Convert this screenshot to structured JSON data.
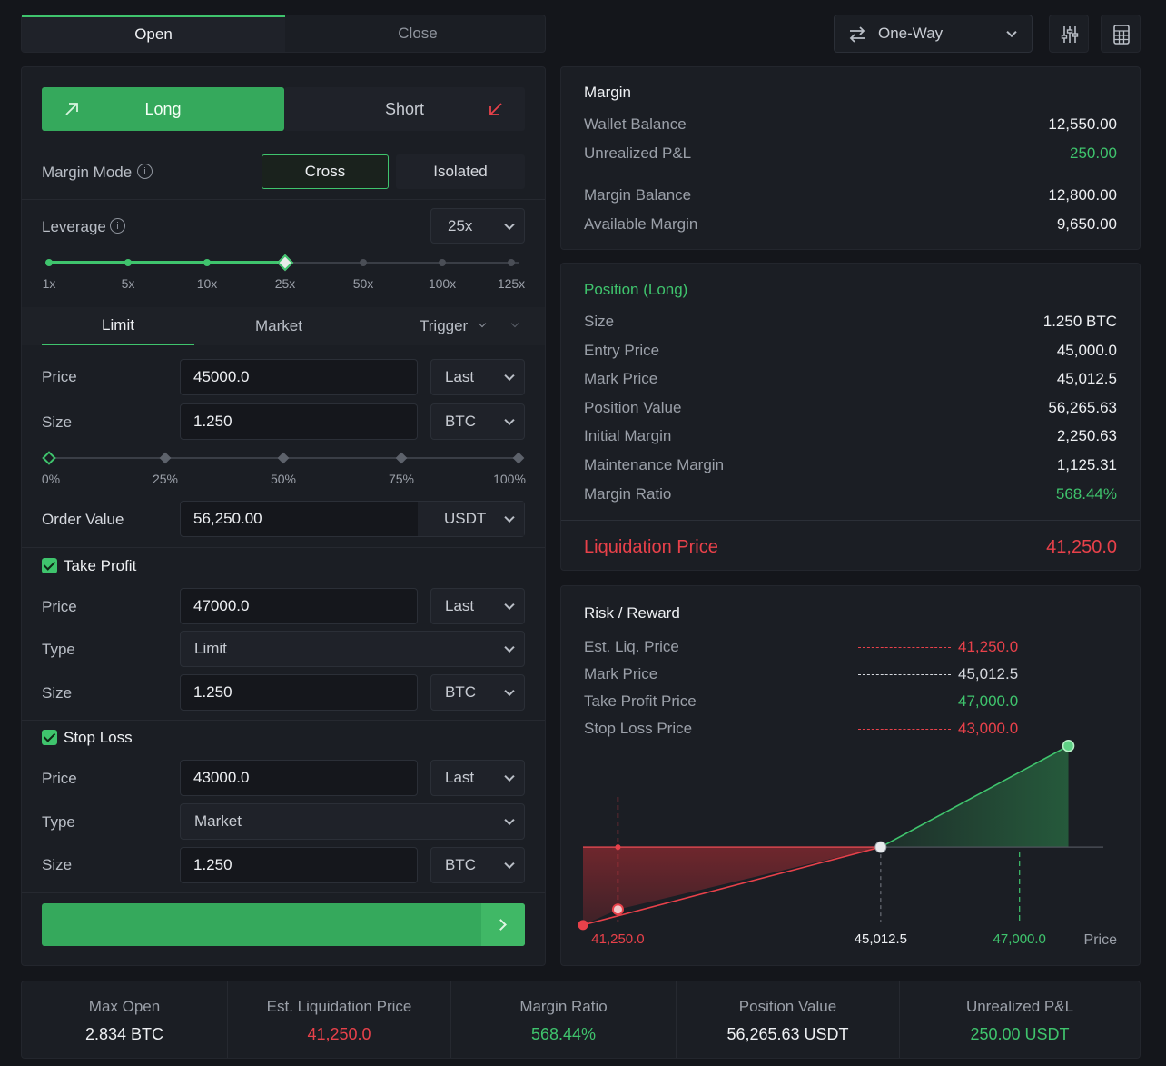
{
  "top": {
    "tabs": [
      "Open",
      "Close"
    ],
    "mode": "One-Way"
  },
  "order": {
    "long": "Long",
    "short": "Short",
    "margin_mode_label": "Margin Mode",
    "margin_modes": [
      "Cross",
      "Isolated"
    ],
    "leverage_label": "Leverage",
    "leverage_value": "25x",
    "leverage_ticks": [
      "1x",
      "5x",
      "10x",
      "25x",
      "50x",
      "100x",
      "125x"
    ],
    "leverage_selected_index": 3,
    "order_tabs": [
      "Limit",
      "Market",
      "Trigger"
    ],
    "price_label": "Price",
    "price_value": "45000.0",
    "price_ref": "Last",
    "size_label": "Size",
    "size_value": "1.250",
    "size_unit": "BTC",
    "size_ticks": [
      "0%",
      "25%",
      "50%",
      "75%",
      "100%"
    ],
    "size_percent": 0,
    "order_value_label": "Order Value",
    "order_value": "56,250.00",
    "order_value_unit": "USDT",
    "tp": {
      "label": "Take Profit",
      "price_label": "Price",
      "price": "47000.0",
      "price_ref": "Last",
      "type_label": "Type",
      "type": "Limit",
      "size_label": "Size",
      "size": "1.250",
      "unit": "BTC"
    },
    "sl": {
      "label": "Stop Loss",
      "price_label": "Price",
      "price": "43000.0",
      "price_ref": "Last",
      "type_label": "Type",
      "type": "Market",
      "size_label": "Size",
      "size": "1.250",
      "unit": "BTC"
    }
  },
  "margin": {
    "title": "Margin",
    "rows": [
      {
        "label": "Wallet Balance",
        "value": "12,550.00"
      },
      {
        "label": "Unrealized P&L",
        "value": "250.00"
      },
      {
        "label": "Margin Balance",
        "value": "12,800.00"
      },
      {
        "label": "Available Margin",
        "value": "9,650.00"
      }
    ]
  },
  "position": {
    "title": "Position (Long)",
    "rows": [
      {
        "label": "Size",
        "value": "1.250 BTC"
      },
      {
        "label": "Entry Price",
        "value": "45,000.0"
      },
      {
        "label": "Mark Price",
        "value": "45,012.5"
      },
      {
        "label": "Position Value",
        "value": "56,265.63"
      },
      {
        "label": "Initial Margin",
        "value": "2,250.63"
      },
      {
        "label": "Maintenance Margin",
        "value": "1,125.31"
      },
      {
        "label": "Margin Ratio",
        "value": "568.44%"
      }
    ],
    "liq_label": "Liquidation Price",
    "liq_value": "41,250.0"
  },
  "risk": {
    "title": "Risk / Reward",
    "legend": [
      {
        "label": "Est. Liq. Price",
        "value": "41,250.0",
        "color": "#e8414a"
      },
      {
        "label": "Mark Price",
        "value": "45,012.5",
        "color": "#d5d8de"
      },
      {
        "label": "Take Profit Price",
        "value": "47,000.0",
        "color": "#3fc46d"
      },
      {
        "label": "Stop Loss Price",
        "value": "43,000.0",
        "color": "#e8414a"
      }
    ],
    "axis_labels": [
      "41,250.0",
      "45,012.5",
      "47,000.0"
    ],
    "axis_title": "Price"
  },
  "chart_data": {
    "type": "line",
    "title": "Risk / Reward",
    "xlabel": "Price",
    "ylabel": "",
    "series": [
      {
        "x": [
          40750,
          41250,
          45012.5,
          47700
        ],
        "y": [
          -1.0,
          -0.8,
          0,
          1.3
        ]
      }
    ],
    "markers": {
      "liquidation": 41250.0,
      "mark": 45012.5,
      "take_profit": 47000.0
    },
    "xlim": [
      40750,
      48200
    ],
    "ylim": [
      -1.2,
      1.6
    ]
  },
  "footer": [
    {
      "label": "Max Open",
      "value": "2.834 BTC",
      "color": "#eef0f3"
    },
    {
      "label": "Est. Liquidation Price",
      "value": "41,250.0",
      "color": "#e8414a"
    },
    {
      "label": "Margin Ratio",
      "value": "568.44%",
      "color": "#3fc46d"
    },
    {
      "label": "Position Value",
      "value": "56,265.63 USDT",
      "color": "#eef0f3"
    },
    {
      "label": "Unrealized P&L",
      "value": "250.00 USDT",
      "color": "#3fc46d"
    }
  ],
  "colors": {
    "accent": "#3fc46d",
    "danger": "#e8414a",
    "background": "#14161b",
    "panel": "#1b1e24"
  }
}
